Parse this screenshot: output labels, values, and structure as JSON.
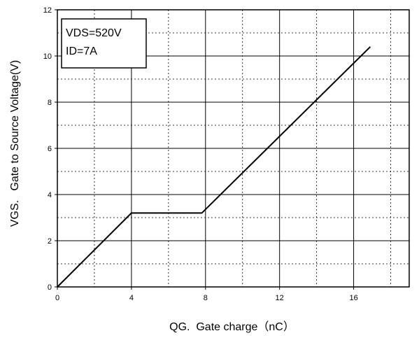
{
  "chart_data": {
    "type": "line",
    "title": "",
    "xlabel": "QG.  Gate charge（nC）",
    "ylabel": "VGS.   Gate to Source Voltage(V)",
    "xlim": [
      0,
      19
    ],
    "ylim": [
      0,
      12
    ],
    "x_ticks": [
      0,
      4,
      8,
      12,
      16
    ],
    "y_ticks": [
      0,
      2,
      4,
      6,
      8,
      10,
      12
    ],
    "grid": "dashed",
    "legend_position": "top-left",
    "annotations": [
      "VDS=520V",
      "ID=7A"
    ],
    "series": [
      {
        "x": [
          0,
          4,
          7.8,
          16.9
        ],
        "y": [
          0,
          3.2,
          3.2,
          10.4
        ]
      }
    ]
  }
}
